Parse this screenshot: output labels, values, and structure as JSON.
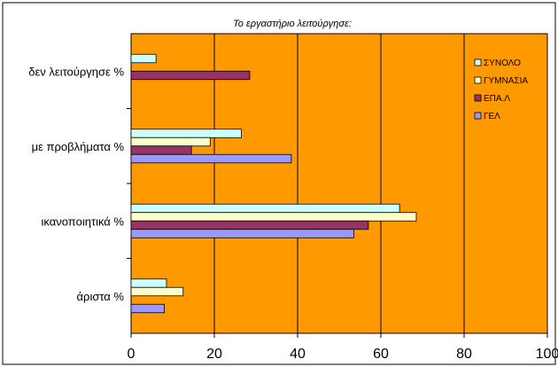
{
  "chart_data": {
    "type": "bar",
    "orientation": "horizontal",
    "title": "Το εργαστήριο λειτούργησε:",
    "categories": [
      "δεν λειτούργησε %",
      "με προβλήματα %",
      "ικανοποιητικά %",
      "άριστα %"
    ],
    "series": [
      {
        "name": "ΣΥΝΟΛΟ",
        "color": "#ccffff",
        "values": [
          6,
          26.5,
          64.5,
          8.5
        ]
      },
      {
        "name": "ΓΥΜΝΑΣΙΑ",
        "color": "#ffffcc",
        "values": [
          null,
          19,
          68.5,
          12.5
        ]
      },
      {
        "name": "ΕΠΑ.Λ",
        "color": "#993366",
        "values": [
          28.5,
          14.5,
          57,
          null
        ]
      },
      {
        "name": "ΓΕΛ",
        "color": "#9999ff",
        "values": [
          null,
          38.5,
          53.5,
          8
        ]
      }
    ],
    "xlim": [
      0,
      100
    ],
    "xticks": [
      "0",
      "20",
      "40",
      "60",
      "80",
      "100"
    ],
    "grid": true,
    "legend_position": "top-right",
    "plot_background": "#ff9900"
  }
}
